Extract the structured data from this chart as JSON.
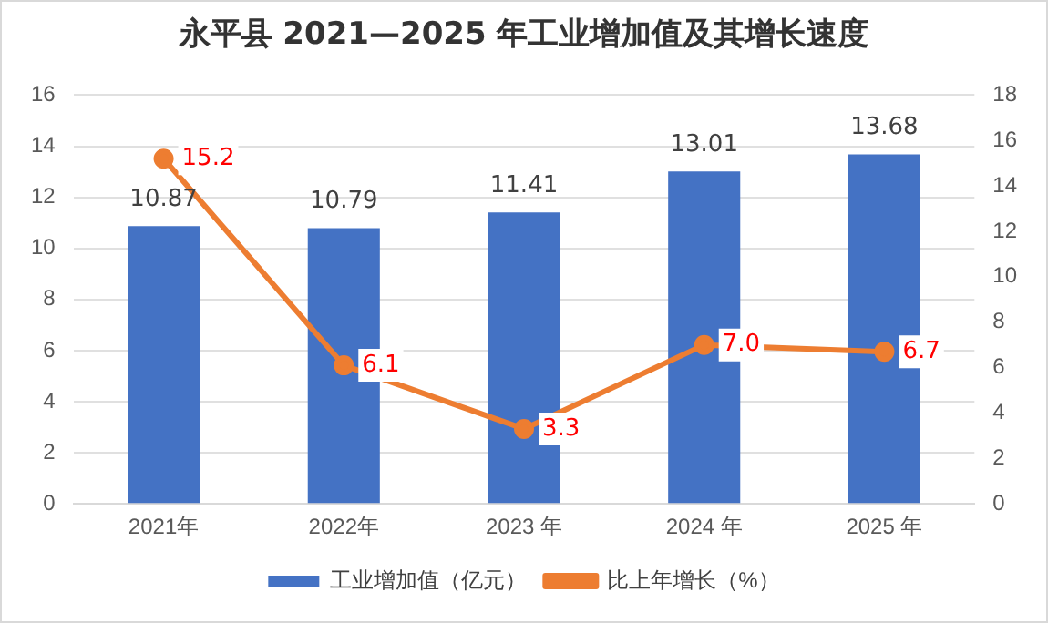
{
  "chart_data": {
    "type": "bar",
    "title": "永平县 2021—2025 年工业增加值及其增长速度",
    "categories": [
      "2021年",
      "2022年",
      "2023 年",
      "2024 年",
      "2025 年"
    ],
    "series": [
      {
        "name": "工业增加值（亿元）",
        "color": "#4472c4",
        "values": [
          10.87,
          10.79,
          11.41,
          13.01,
          13.68
        ]
      },
      {
        "name": "比上年增长（%）",
        "type": "line",
        "axis": "y2",
        "color": "#ed7d31",
        "values": [
          15.2,
          6.1,
          3.3,
          7.0,
          6.7
        ],
        "value_labels": [
          "15.2",
          "6.1",
          "3.3",
          "7.0",
          "6.7"
        ]
      }
    ],
    "ylim": [
      0,
      16
    ],
    "yticks": [
      0,
      2,
      4,
      6,
      8,
      10,
      12,
      14,
      16
    ],
    "y2lim": [
      0,
      18
    ],
    "y2ticks": [
      0,
      2,
      4,
      6,
      8,
      10,
      12,
      14,
      16,
      18
    ],
    "grid": "y",
    "legend": "bottom",
    "marker": "circle",
    "line_style": "solid",
    "data_labels": true
  }
}
